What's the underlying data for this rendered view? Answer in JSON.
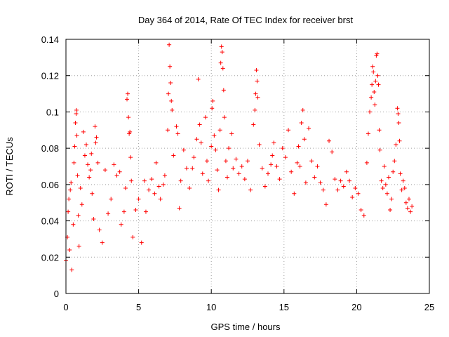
{
  "chart_data": {
    "type": "scatter",
    "title": "Day 364 of 2014, Rate Of TEC Index for receiver brst",
    "xlabel": "GPS time / hours",
    "ylabel": "ROTI / TECUs",
    "xlim": [
      0,
      25
    ],
    "ylim": [
      0,
      0.14
    ],
    "x_ticks": [
      0,
      5,
      10,
      15,
      20,
      25
    ],
    "x_tick_labels": [
      "0",
      "5",
      "10",
      "15",
      "20",
      "25"
    ],
    "y_ticks": [
      0,
      0.02,
      0.04,
      0.06,
      0.08,
      0.1,
      0.12,
      0.14
    ],
    "y_tick_labels": [
      "0",
      "0.02",
      "0.04",
      "0.06",
      "0.08",
      "0.1",
      "0.12",
      "0.14"
    ],
    "grid": true,
    "marker": "+",
    "color": "#ff0000",
    "series": [
      {
        "name": "ROTI",
        "points": [
          [
            0.0,
            0.018
          ],
          [
            0.1,
            0.031
          ],
          [
            0.15,
            0.045
          ],
          [
            0.2,
            0.052
          ],
          [
            0.25,
            0.024
          ],
          [
            0.3,
            0.057
          ],
          [
            0.35,
            0.061
          ],
          [
            0.4,
            0.013
          ],
          [
            0.5,
            0.038
          ],
          [
            0.55,
            0.072
          ],
          [
            0.6,
            0.081
          ],
          [
            0.65,
            0.094
          ],
          [
            0.7,
            0.099
          ],
          [
            0.72,
            0.101
          ],
          [
            0.75,
            0.087
          ],
          [
            0.8,
            0.065
          ],
          [
            0.85,
            0.043
          ],
          [
            0.9,
            0.026
          ],
          [
            1.0,
            0.058
          ],
          [
            1.1,
            0.049
          ],
          [
            1.2,
            0.089
          ],
          [
            1.3,
            0.076
          ],
          [
            1.4,
            0.082
          ],
          [
            1.5,
            0.071
          ],
          [
            1.6,
            0.064
          ],
          [
            1.7,
            0.068
          ],
          [
            1.75,
            0.077
          ],
          [
            1.8,
            0.055
          ],
          [
            1.9,
            0.041
          ],
          [
            2.0,
            0.092
          ],
          [
            2.05,
            0.083
          ],
          [
            2.1,
            0.086
          ],
          [
            2.2,
            0.072
          ],
          [
            2.3,
            0.035
          ],
          [
            2.5,
            0.028
          ],
          [
            2.7,
            0.068
          ],
          [
            2.9,
            0.044
          ],
          [
            3.1,
            0.052
          ],
          [
            3.3,
            0.071
          ],
          [
            3.5,
            0.065
          ],
          [
            3.7,
            0.067
          ],
          [
            3.8,
            0.038
          ],
          [
            4.0,
            0.045
          ],
          [
            4.1,
            0.058
          ],
          [
            4.2,
            0.107
          ],
          [
            4.25,
            0.11
          ],
          [
            4.3,
            0.097
          ],
          [
            4.35,
            0.088
          ],
          [
            4.4,
            0.089
          ],
          [
            4.45,
            0.075
          ],
          [
            4.5,
            0.062
          ],
          [
            4.6,
            0.031
          ],
          [
            4.8,
            0.046
          ],
          [
            5.0,
            0.052
          ],
          [
            5.2,
            0.028
          ],
          [
            5.4,
            0.062
          ],
          [
            5.5,
            0.045
          ],
          [
            5.7,
            0.057
          ],
          [
            5.9,
            0.063
          ],
          [
            6.1,
            0.055
          ],
          [
            6.2,
            0.072
          ],
          [
            6.4,
            0.059
          ],
          [
            6.5,
            0.052
          ],
          [
            6.7,
            0.06
          ],
          [
            6.8,
            0.065
          ],
          [
            7.0,
            0.09
          ],
          [
            7.05,
            0.11
          ],
          [
            7.1,
            0.137
          ],
          [
            7.15,
            0.125
          ],
          [
            7.2,
            0.116
          ],
          [
            7.25,
            0.106
          ],
          [
            7.3,
            0.101
          ],
          [
            7.4,
            0.076
          ],
          [
            7.6,
            0.092
          ],
          [
            7.7,
            0.088
          ],
          [
            7.8,
            0.047
          ],
          [
            7.9,
            0.062
          ],
          [
            8.1,
            0.079
          ],
          [
            8.3,
            0.069
          ],
          [
            8.5,
            0.058
          ],
          [
            8.7,
            0.069
          ],
          [
            8.8,
            0.075
          ],
          [
            9.0,
            0.085
          ],
          [
            9.1,
            0.118
          ],
          [
            9.2,
            0.093
          ],
          [
            9.3,
            0.083
          ],
          [
            9.4,
            0.066
          ],
          [
            9.6,
            0.097
          ],
          [
            9.7,
            0.073
          ],
          [
            9.8,
            0.062
          ],
          [
            10.0,
            0.081
          ],
          [
            10.05,
            0.102
          ],
          [
            10.1,
            0.106
          ],
          [
            10.2,
            0.087
          ],
          [
            10.3,
            0.079
          ],
          [
            10.4,
            0.068
          ],
          [
            10.5,
            0.057
          ],
          [
            10.6,
            0.09
          ],
          [
            10.65,
            0.127
          ],
          [
            10.7,
            0.136
          ],
          [
            10.75,
            0.133
          ],
          [
            10.8,
            0.124
          ],
          [
            10.85,
            0.112
          ],
          [
            10.9,
            0.097
          ],
          [
            11.0,
            0.073
          ],
          [
            11.1,
            0.064
          ],
          [
            11.2,
            0.08
          ],
          [
            11.4,
            0.088
          ],
          [
            11.5,
            0.069
          ],
          [
            11.7,
            0.074
          ],
          [
            11.9,
            0.066
          ],
          [
            12.1,
            0.07
          ],
          [
            12.3,
            0.063
          ],
          [
            12.5,
            0.073
          ],
          [
            12.7,
            0.057
          ],
          [
            12.9,
            0.093
          ],
          [
            13.0,
            0.101
          ],
          [
            13.05,
            0.11
          ],
          [
            13.1,
            0.123
          ],
          [
            13.15,
            0.117
          ],
          [
            13.2,
            0.108
          ],
          [
            13.3,
            0.082
          ],
          [
            13.5,
            0.069
          ],
          [
            13.7,
            0.059
          ],
          [
            13.9,
            0.066
          ],
          [
            14.1,
            0.071
          ],
          [
            14.2,
            0.076
          ],
          [
            14.3,
            0.083
          ],
          [
            14.5,
            0.07
          ],
          [
            14.7,
            0.063
          ],
          [
            14.9,
            0.08
          ],
          [
            15.1,
            0.075
          ],
          [
            15.3,
            0.09
          ],
          [
            15.5,
            0.067
          ],
          [
            15.7,
            0.055
          ],
          [
            15.9,
            0.072
          ],
          [
            16.0,
            0.081
          ],
          [
            16.1,
            0.07
          ],
          [
            16.2,
            0.094
          ],
          [
            16.3,
            0.101
          ],
          [
            16.4,
            0.085
          ],
          [
            16.5,
            0.061
          ],
          [
            16.7,
            0.091
          ],
          [
            16.9,
            0.073
          ],
          [
            17.1,
            0.064
          ],
          [
            17.3,
            0.07
          ],
          [
            17.5,
            0.061
          ],
          [
            17.7,
            0.057
          ],
          [
            17.9,
            0.049
          ],
          [
            18.1,
            0.084
          ],
          [
            18.3,
            0.078
          ],
          [
            18.5,
            0.063
          ],
          [
            18.7,
            0.057
          ],
          [
            18.9,
            0.062
          ],
          [
            19.1,
            0.059
          ],
          [
            19.3,
            0.067
          ],
          [
            19.5,
            0.062
          ],
          [
            19.7,
            0.053
          ],
          [
            19.9,
            0.058
          ],
          [
            20.1,
            0.055
          ],
          [
            20.3,
            0.046
          ],
          [
            20.5,
            0.043
          ],
          [
            20.7,
            0.072
          ],
          [
            20.8,
            0.088
          ],
          [
            20.9,
            0.1
          ],
          [
            21.0,
            0.108
          ],
          [
            21.05,
            0.115
          ],
          [
            21.1,
            0.125
          ],
          [
            21.15,
            0.122
          ],
          [
            21.2,
            0.111
          ],
          [
            21.25,
            0.104
          ],
          [
            21.3,
            0.117
          ],
          [
            21.35,
            0.131
          ],
          [
            21.4,
            0.132
          ],
          [
            21.45,
            0.12
          ],
          [
            21.5,
            0.115
          ],
          [
            21.55,
            0.09
          ],
          [
            21.6,
            0.079
          ],
          [
            21.7,
            0.062
          ],
          [
            21.8,
            0.058
          ],
          [
            21.9,
            0.07
          ],
          [
            22.0,
            0.06
          ],
          [
            22.1,
            0.055
          ],
          [
            22.2,
            0.064
          ],
          [
            22.3,
            0.046
          ],
          [
            22.4,
            0.052
          ],
          [
            22.5,
            0.067
          ],
          [
            22.6,
            0.073
          ],
          [
            22.7,
            0.082
          ],
          [
            22.8,
            0.102
          ],
          [
            22.85,
            0.099
          ],
          [
            22.9,
            0.094
          ],
          [
            22.95,
            0.084
          ],
          [
            23.0,
            0.066
          ],
          [
            23.1,
            0.057
          ],
          [
            23.2,
            0.062
          ],
          [
            23.3,
            0.058
          ],
          [
            23.4,
            0.05
          ],
          [
            23.5,
            0.047
          ],
          [
            23.6,
            0.052
          ],
          [
            23.7,
            0.045
          ],
          [
            23.8,
            0.048
          ]
        ]
      }
    ]
  }
}
